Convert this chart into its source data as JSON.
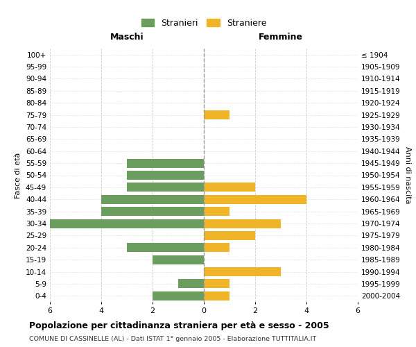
{
  "age_groups": [
    "0-4",
    "5-9",
    "10-14",
    "15-19",
    "20-24",
    "25-29",
    "30-34",
    "35-39",
    "40-44",
    "45-49",
    "50-54",
    "55-59",
    "60-64",
    "65-69",
    "70-74",
    "75-79",
    "80-84",
    "85-89",
    "90-94",
    "95-99",
    "100+"
  ],
  "birth_years": [
    "2000-2004",
    "1995-1999",
    "1990-1994",
    "1985-1989",
    "1980-1984",
    "1975-1979",
    "1970-1974",
    "1965-1969",
    "1960-1964",
    "1955-1959",
    "1950-1954",
    "1945-1949",
    "1940-1944",
    "1935-1939",
    "1930-1934",
    "1925-1929",
    "1920-1924",
    "1915-1919",
    "1910-1914",
    "1905-1909",
    "≤ 1904"
  ],
  "maschi": [
    2,
    1,
    0,
    2,
    3,
    0,
    6,
    4,
    4,
    3,
    3,
    3,
    0,
    0,
    0,
    0,
    0,
    0,
    0,
    0,
    0
  ],
  "femmine": [
    1,
    1,
    3,
    0,
    1,
    2,
    3,
    1,
    4,
    2,
    0,
    0,
    0,
    0,
    0,
    1,
    0,
    0,
    0,
    0,
    0
  ],
  "male_color": "#6b9e5e",
  "female_color": "#f0b429",
  "title": "Popolazione per cittadinanza straniera per età e sesso - 2005",
  "subtitle": "COMUNE DI CASSINELLE (AL) - Dati ISTAT 1° gennaio 2005 - Elaborazione TUTTITALIA.IT",
  "xlabel_left": "Maschi",
  "xlabel_right": "Femmine",
  "ylabel_left": "Fasce di età",
  "ylabel_right": "Anni di nascita",
  "legend_male": "Stranieri",
  "legend_female": "Straniere",
  "xlim": 6,
  "bg_color": "#ffffff",
  "grid_color": "#cccccc",
  "bar_height": 0.75
}
